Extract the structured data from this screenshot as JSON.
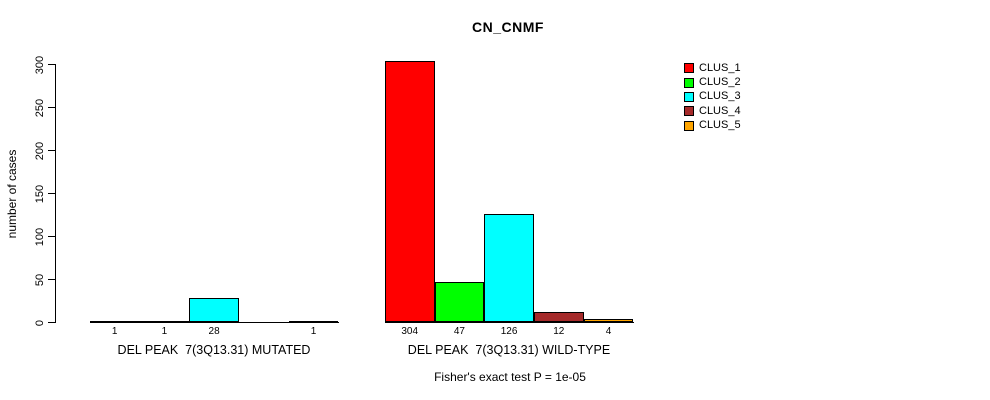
{
  "chart_data": {
    "type": "bar",
    "title": "CN_CNMF",
    "ylabel": "number of cases",
    "ylim": [
      0,
      300
    ],
    "yticks": [
      0,
      50,
      100,
      150,
      200,
      250,
      300
    ],
    "grid": false,
    "legend_position": "right",
    "legend": [
      {
        "label": "CLUS_1",
        "color": "#FF0000"
      },
      {
        "label": "CLUS_2",
        "color": "#00FF00"
      },
      {
        "label": "CLUS_3",
        "color": "#00FFFF"
      },
      {
        "label": "CLUS_4",
        "color": "#A52A2A"
      },
      {
        "label": "CLUS_5",
        "color": "#FFA500"
      }
    ],
    "groups": [
      {
        "label": "DEL PEAK  7(3Q13.31) MUTATED",
        "series": [
          "CLUS_1",
          "CLUS_2",
          "CLUS_3",
          "CLUS_4",
          "CLUS_5"
        ],
        "values": [
          1,
          1,
          28,
          0,
          1
        ],
        "bar_labels": [
          "1",
          "1",
          "28",
          "",
          "1"
        ]
      },
      {
        "label": "DEL PEAK  7(3Q13.31) WILD-TYPE",
        "series": [
          "CLUS_1",
          "CLUS_2",
          "CLUS_3",
          "CLUS_4",
          "CLUS_5"
        ],
        "values": [
          304,
          47,
          126,
          12,
          4
        ],
        "bar_labels": [
          "304",
          "47",
          "126",
          "12",
          "4"
        ]
      }
    ],
    "footnote": "Fisher's exact test P = 1e-05"
  }
}
